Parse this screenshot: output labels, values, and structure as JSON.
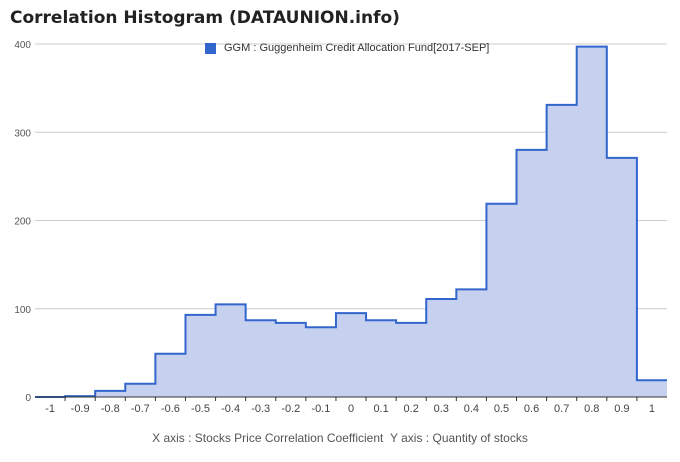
{
  "chart_data": {
    "type": "area",
    "title": "Correlation Histogram (DATAUNION.info)",
    "legend": {
      "label": "GGM : Guggenheim Credit Allocation Fund[2017-SEP]",
      "placement": "top-center"
    },
    "x_ticks": [
      "-1",
      "-0.9",
      "-0.8",
      "-0.7",
      "-0.6",
      "-0.5",
      "-0.4",
      "-0.3",
      "-0.2",
      "-0.1",
      "0",
      "0.1",
      "0.2",
      "0.3",
      "0.4",
      "0.5",
      "0.6",
      "0.7",
      "0.8",
      "0.9",
      "1"
    ],
    "y_ticks": [
      "0",
      "100",
      "200",
      "300",
      "400"
    ],
    "ylim": [
      0,
      400
    ],
    "xlim": [
      -1.05,
      1.05
    ],
    "grid": true,
    "series": [
      {
        "name": "GGM : Guggenheim Credit Allocation Fund[2017-SEP]",
        "x": [
          -1,
          -0.9,
          -0.8,
          -0.7,
          -0.6,
          -0.5,
          -0.4,
          -0.3,
          -0.2,
          -0.1,
          0,
          0.1,
          0.2,
          0.3,
          0.4,
          0.5,
          0.6,
          0.7,
          0.8,
          0.9,
          1
        ],
        "values": [
          0,
          1,
          7,
          15,
          49,
          93,
          105,
          87,
          84,
          79,
          95,
          87,
          84,
          111,
          122,
          219,
          280,
          331,
          397,
          271,
          19
        ]
      }
    ],
    "colors": {
      "line": "#3366cc",
      "fill": "#c5d1ef",
      "grid": "#cccccc",
      "axis": "#333333"
    }
  },
  "footer": {
    "x_axis_label": "X axis : Stocks Price Correlation Coefficient",
    "y_axis_label": "Y axis : Quantity of stocks"
  }
}
